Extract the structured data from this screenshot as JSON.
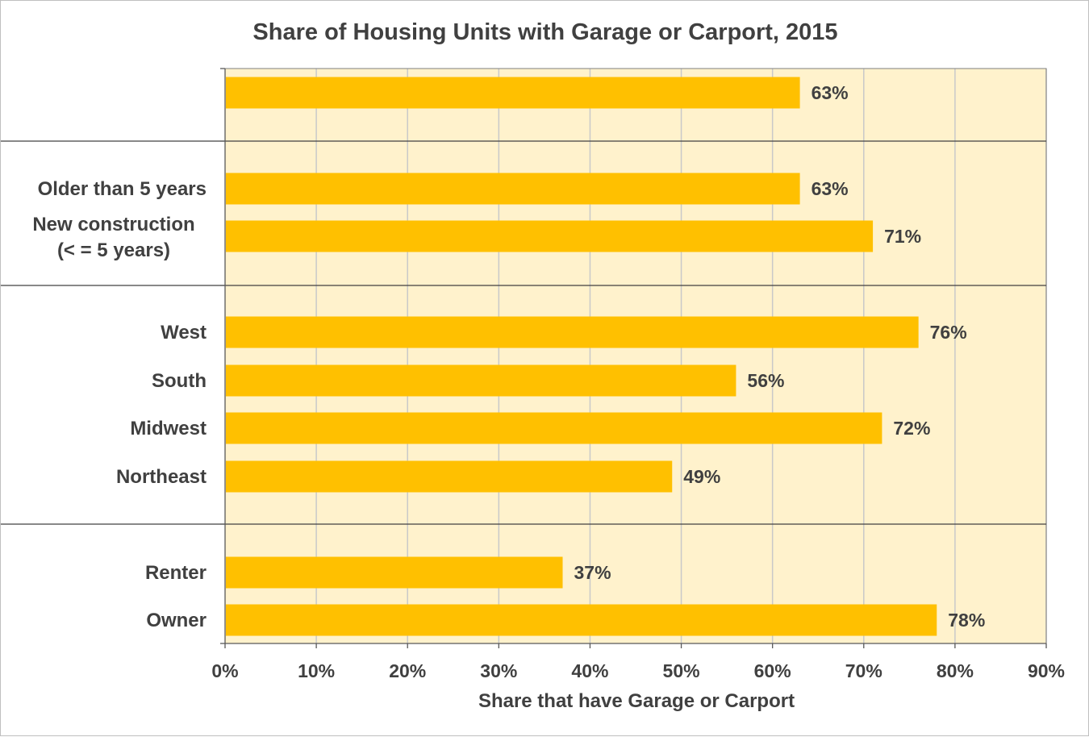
{
  "chart_data": {
    "type": "bar",
    "orientation": "horizontal",
    "title": "Share of Housing Units with Garage or Carport, 2015",
    "xlabel": "Share that have Garage or Carport",
    "ylabel": "",
    "xlim": [
      0,
      90
    ],
    "x_ticks": [
      "0%",
      "10%",
      "20%",
      "30%",
      "40%",
      "50%",
      "60%",
      "70%",
      "80%",
      "90%"
    ],
    "grid": "vertical",
    "colors": {
      "bar": "#FFC000",
      "plot_background": "#FFF2CC",
      "gridline": "#C9C9C9",
      "text": "#404040"
    },
    "categories": [
      "",
      "Older than 5 years",
      "New construction\n(< = 5 years)",
      "West",
      "South",
      "Midwest",
      "Northeast",
      "Renter",
      "Owner"
    ],
    "values": [
      63,
      63,
      71,
      76,
      56,
      72,
      49,
      37,
      78
    ],
    "value_labels": [
      "63%",
      "63%",
      "71%",
      "76%",
      "56%",
      "72%",
      "49%",
      "37%",
      "78%"
    ],
    "groups": [
      {
        "categories": [
          ""
        ]
      },
      {
        "categories": [
          "Older than 5 years",
          "New construction\n(< = 5 years)"
        ]
      },
      {
        "categories": [
          "West",
          "South",
          "Midwest",
          "Northeast"
        ]
      },
      {
        "categories": [
          "Renter",
          "Owner"
        ]
      }
    ]
  }
}
